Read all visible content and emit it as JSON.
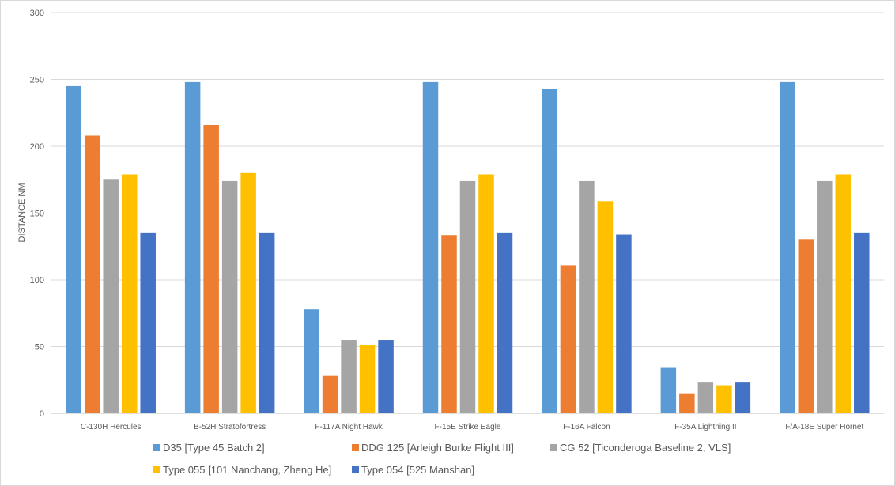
{
  "chart_data": {
    "type": "bar",
    "title": "",
    "xlabel": "",
    "ylabel": "DISTANCE NM",
    "ylim": [
      0,
      300
    ],
    "yticks": [
      0,
      50,
      100,
      150,
      200,
      250,
      300
    ],
    "grid": true,
    "legend_position": "bottom",
    "categories": [
      "C-130H Hercules",
      "B-52H Stratofortress",
      "F-117A Night Hawk",
      "F-15E Strike Eagle",
      "F-16A Falcon",
      "F-35A Lightning II",
      "F/A-18E Super Hornet"
    ],
    "series": [
      {
        "name": "D35 [Type 45 Batch 2]",
        "color": "#5b9bd5",
        "values": [
          245,
          248,
          78,
          248,
          243,
          34,
          248
        ]
      },
      {
        "name": "DDG 125 [Arleigh Burke Flight III]",
        "color": "#ed7d31",
        "values": [
          208,
          216,
          28,
          133,
          111,
          15,
          130
        ]
      },
      {
        "name": "CG 52 [Ticonderoga Baseline 2, VLS]",
        "color": "#a5a5a5",
        "values": [
          175,
          174,
          55,
          174,
          174,
          23,
          174
        ]
      },
      {
        "name": "Type 055 [101 Nanchang, Zheng He]",
        "color": "#ffc000",
        "values": [
          179,
          180,
          51,
          179,
          159,
          21,
          179
        ]
      },
      {
        "name": "Type 054 [525 Manshan]",
        "color": "#4472c4",
        "values": [
          135,
          135,
          55,
          135,
          134,
          23,
          135
        ]
      }
    ]
  }
}
